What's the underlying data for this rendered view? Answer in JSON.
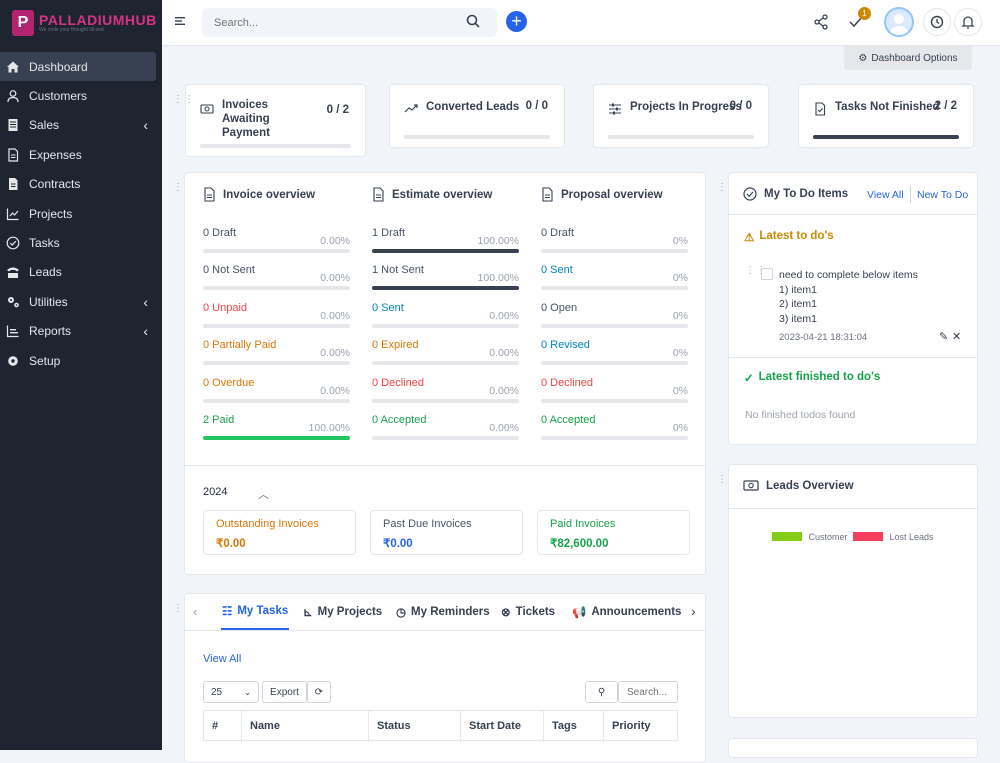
{
  "brand": {
    "name": "PALLADIUMHUB",
    "tagline": "We code your thought till end"
  },
  "sidebar": {
    "items": [
      {
        "label": "Dashboard",
        "icon": "home-icon"
      },
      {
        "label": "Customers",
        "icon": "user-icon"
      },
      {
        "label": "Sales",
        "icon": "receipt-icon"
      },
      {
        "label": "Expenses",
        "icon": "document-icon"
      },
      {
        "label": "Contracts",
        "icon": "contract-icon"
      },
      {
        "label": "Projects",
        "icon": "chart-icon"
      },
      {
        "label": "Tasks",
        "icon": "check-circle-icon"
      },
      {
        "label": "Leads",
        "icon": "tty-icon"
      },
      {
        "label": "Utilities",
        "icon": "cogs-icon"
      },
      {
        "label": "Reports",
        "icon": "chart-area-icon"
      },
      {
        "label": "Setup",
        "icon": "gear-icon"
      }
    ]
  },
  "header": {
    "search_placeholder": "Search...",
    "notification_count": "1"
  },
  "dashboard_options": "Dashboard Options",
  "stats": [
    {
      "title": "Invoices Awaiting Payment",
      "value": "0 / 2",
      "progress": 0
    },
    {
      "title": "Converted Leads",
      "value": "0 / 0",
      "progress": 0
    },
    {
      "title": "Projects In Progress",
      "value": "0 / 0",
      "progress": 0
    },
    {
      "title": "Tasks Not Finished",
      "value": "2 / 2",
      "progress": 1
    }
  ],
  "overview": {
    "invoice": {
      "title": "Invoice overview",
      "rows": [
        {
          "label": "0 Draft",
          "pct": "0.00%",
          "color": "#475569",
          "fill": 0
        },
        {
          "label": "0 Not Sent",
          "pct": "0.00%",
          "color": "#475569",
          "fill": 0
        },
        {
          "label": "0 Unpaid",
          "pct": "0.00%",
          "color": "#ef4444",
          "fill": 0
        },
        {
          "label": "0 Partially Paid",
          "pct": "0.00%",
          "color": "#d97706",
          "fill": 0
        },
        {
          "label": "0 Overdue",
          "pct": "0.00%",
          "color": "#d97706",
          "fill": 0
        },
        {
          "label": "2 Paid",
          "pct": "100.00%",
          "color": "#16a34a",
          "fill": 1
        }
      ]
    },
    "estimate": {
      "title": "Estimate overview",
      "rows": [
        {
          "label": "1 Draft",
          "pct": "100.00%",
          "color": "#475569",
          "fill": 1
        },
        {
          "label": "1 Not Sent",
          "pct": "100.00%",
          "color": "#475569",
          "fill": 1
        },
        {
          "label": "0 Sent",
          "pct": "0.00%",
          "color": "#0284c7",
          "fill": 0
        },
        {
          "label": "0 Expired",
          "pct": "0.00%",
          "color": "#d97706",
          "fill": 0
        },
        {
          "label": "0 Declined",
          "pct": "0.00%",
          "color": "#ef4444",
          "fill": 0
        },
        {
          "label": "0 Accepted",
          "pct": "0.00%",
          "color": "#16a34a",
          "fill": 0
        }
      ]
    },
    "proposal": {
      "title": "Proposal overview",
      "rows": [
        {
          "label": "0 Draft",
          "pct": "0%",
          "color": "#475569",
          "fill": 0
        },
        {
          "label": "0 Sent",
          "pct": "0%",
          "color": "#0284c7",
          "fill": 0
        },
        {
          "label": "0 Open",
          "pct": "0%",
          "color": "#475569",
          "fill": 0
        },
        {
          "label": "0 Revised",
          "pct": "0%",
          "color": "#0284c7",
          "fill": 0
        },
        {
          "label": "0 Declined",
          "pct": "0%",
          "color": "#ef4444",
          "fill": 0
        },
        {
          "label": "0 Accepted",
          "pct": "0%",
          "color": "#16a34a",
          "fill": 0
        }
      ]
    },
    "year": "2024",
    "summary": [
      {
        "label": "Outstanding Invoices",
        "value": "₹0.00",
        "color": "#d97706"
      },
      {
        "label": "Past Due Invoices",
        "value": "₹0.00",
        "color": "#475569"
      },
      {
        "label": "Paid Invoices",
        "value": "₹82,600.00",
        "color": "#16a34a"
      }
    ]
  },
  "todo": {
    "title": "My To Do Items",
    "view_all": "View All",
    "new_todo": "New To Do",
    "latest_title": "Latest to do's",
    "item": {
      "lines": [
        "need to complete below items",
        "1) item1",
        "2) item1",
        "3) item1"
      ],
      "date": "2023-04-21 18:31:04"
    },
    "finished_title": "Latest finished to do's",
    "empty": "No finished todos found"
  },
  "leads": {
    "title": "Leads Overview",
    "legend": [
      {
        "label": "Customer",
        "color": "#84cc16"
      },
      {
        "label": "Lost Leads",
        "color": "#f43f5e"
      }
    ]
  },
  "tabs": {
    "items": [
      "My Tasks",
      "My Projects",
      "My Reminders",
      "Tickets",
      "Announcements"
    ],
    "view_all": "View All",
    "page_size": "25",
    "export": "Export",
    "search_placeholder": "Search...",
    "columns": [
      "#",
      "Name",
      "Status",
      "Start Date",
      "Tags",
      "Priority"
    ]
  }
}
